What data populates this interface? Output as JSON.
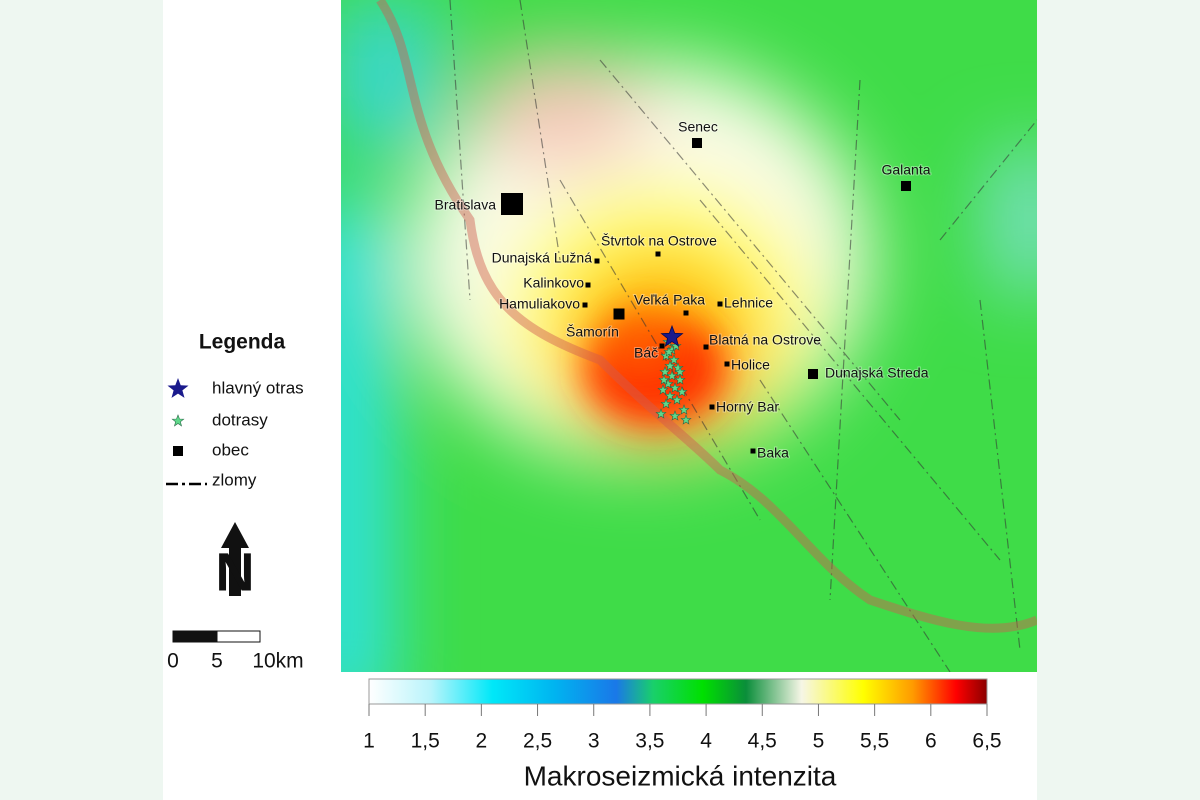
{
  "legend": {
    "title": "Legenda",
    "items": [
      "hlavný otras",
      "dotrasy",
      "obec",
      "zlomy"
    ]
  },
  "north_arrow": {
    "label": "N"
  },
  "scale_bar": {
    "labels": [
      "0",
      "5",
      "10km"
    ]
  },
  "towns": [
    "Senec",
    "Galanta",
    "Bratislava",
    "Štvrtok na Ostrove",
    "Dunajská Lužná",
    "Kalinkovo",
    "Hamuliakovo",
    "Veľká Paka",
    "Lehnice",
    "Šamorín",
    "Báč",
    "Blatná na Ostrove",
    "Holice",
    "Dunajská Streda",
    "Horný Bar",
    "Baka"
  ],
  "colorbar": {
    "title": "Makroseizmická intenzita",
    "range": [
      1,
      6.5
    ],
    "ticks": [
      1,
      {
        "value": 1.5,
        "label": "1,5"
      },
      2,
      {
        "value": 2.5,
        "label": "2,5"
      },
      3,
      {
        "value": 3.5,
        "label": "3,5"
      },
      4,
      {
        "value": 4.5,
        "label": "4,5"
      },
      5,
      {
        "value": 5.5,
        "label": "5,5"
      },
      6,
      {
        "value": 6.5,
        "label": "6,5"
      }
    ]
  }
}
